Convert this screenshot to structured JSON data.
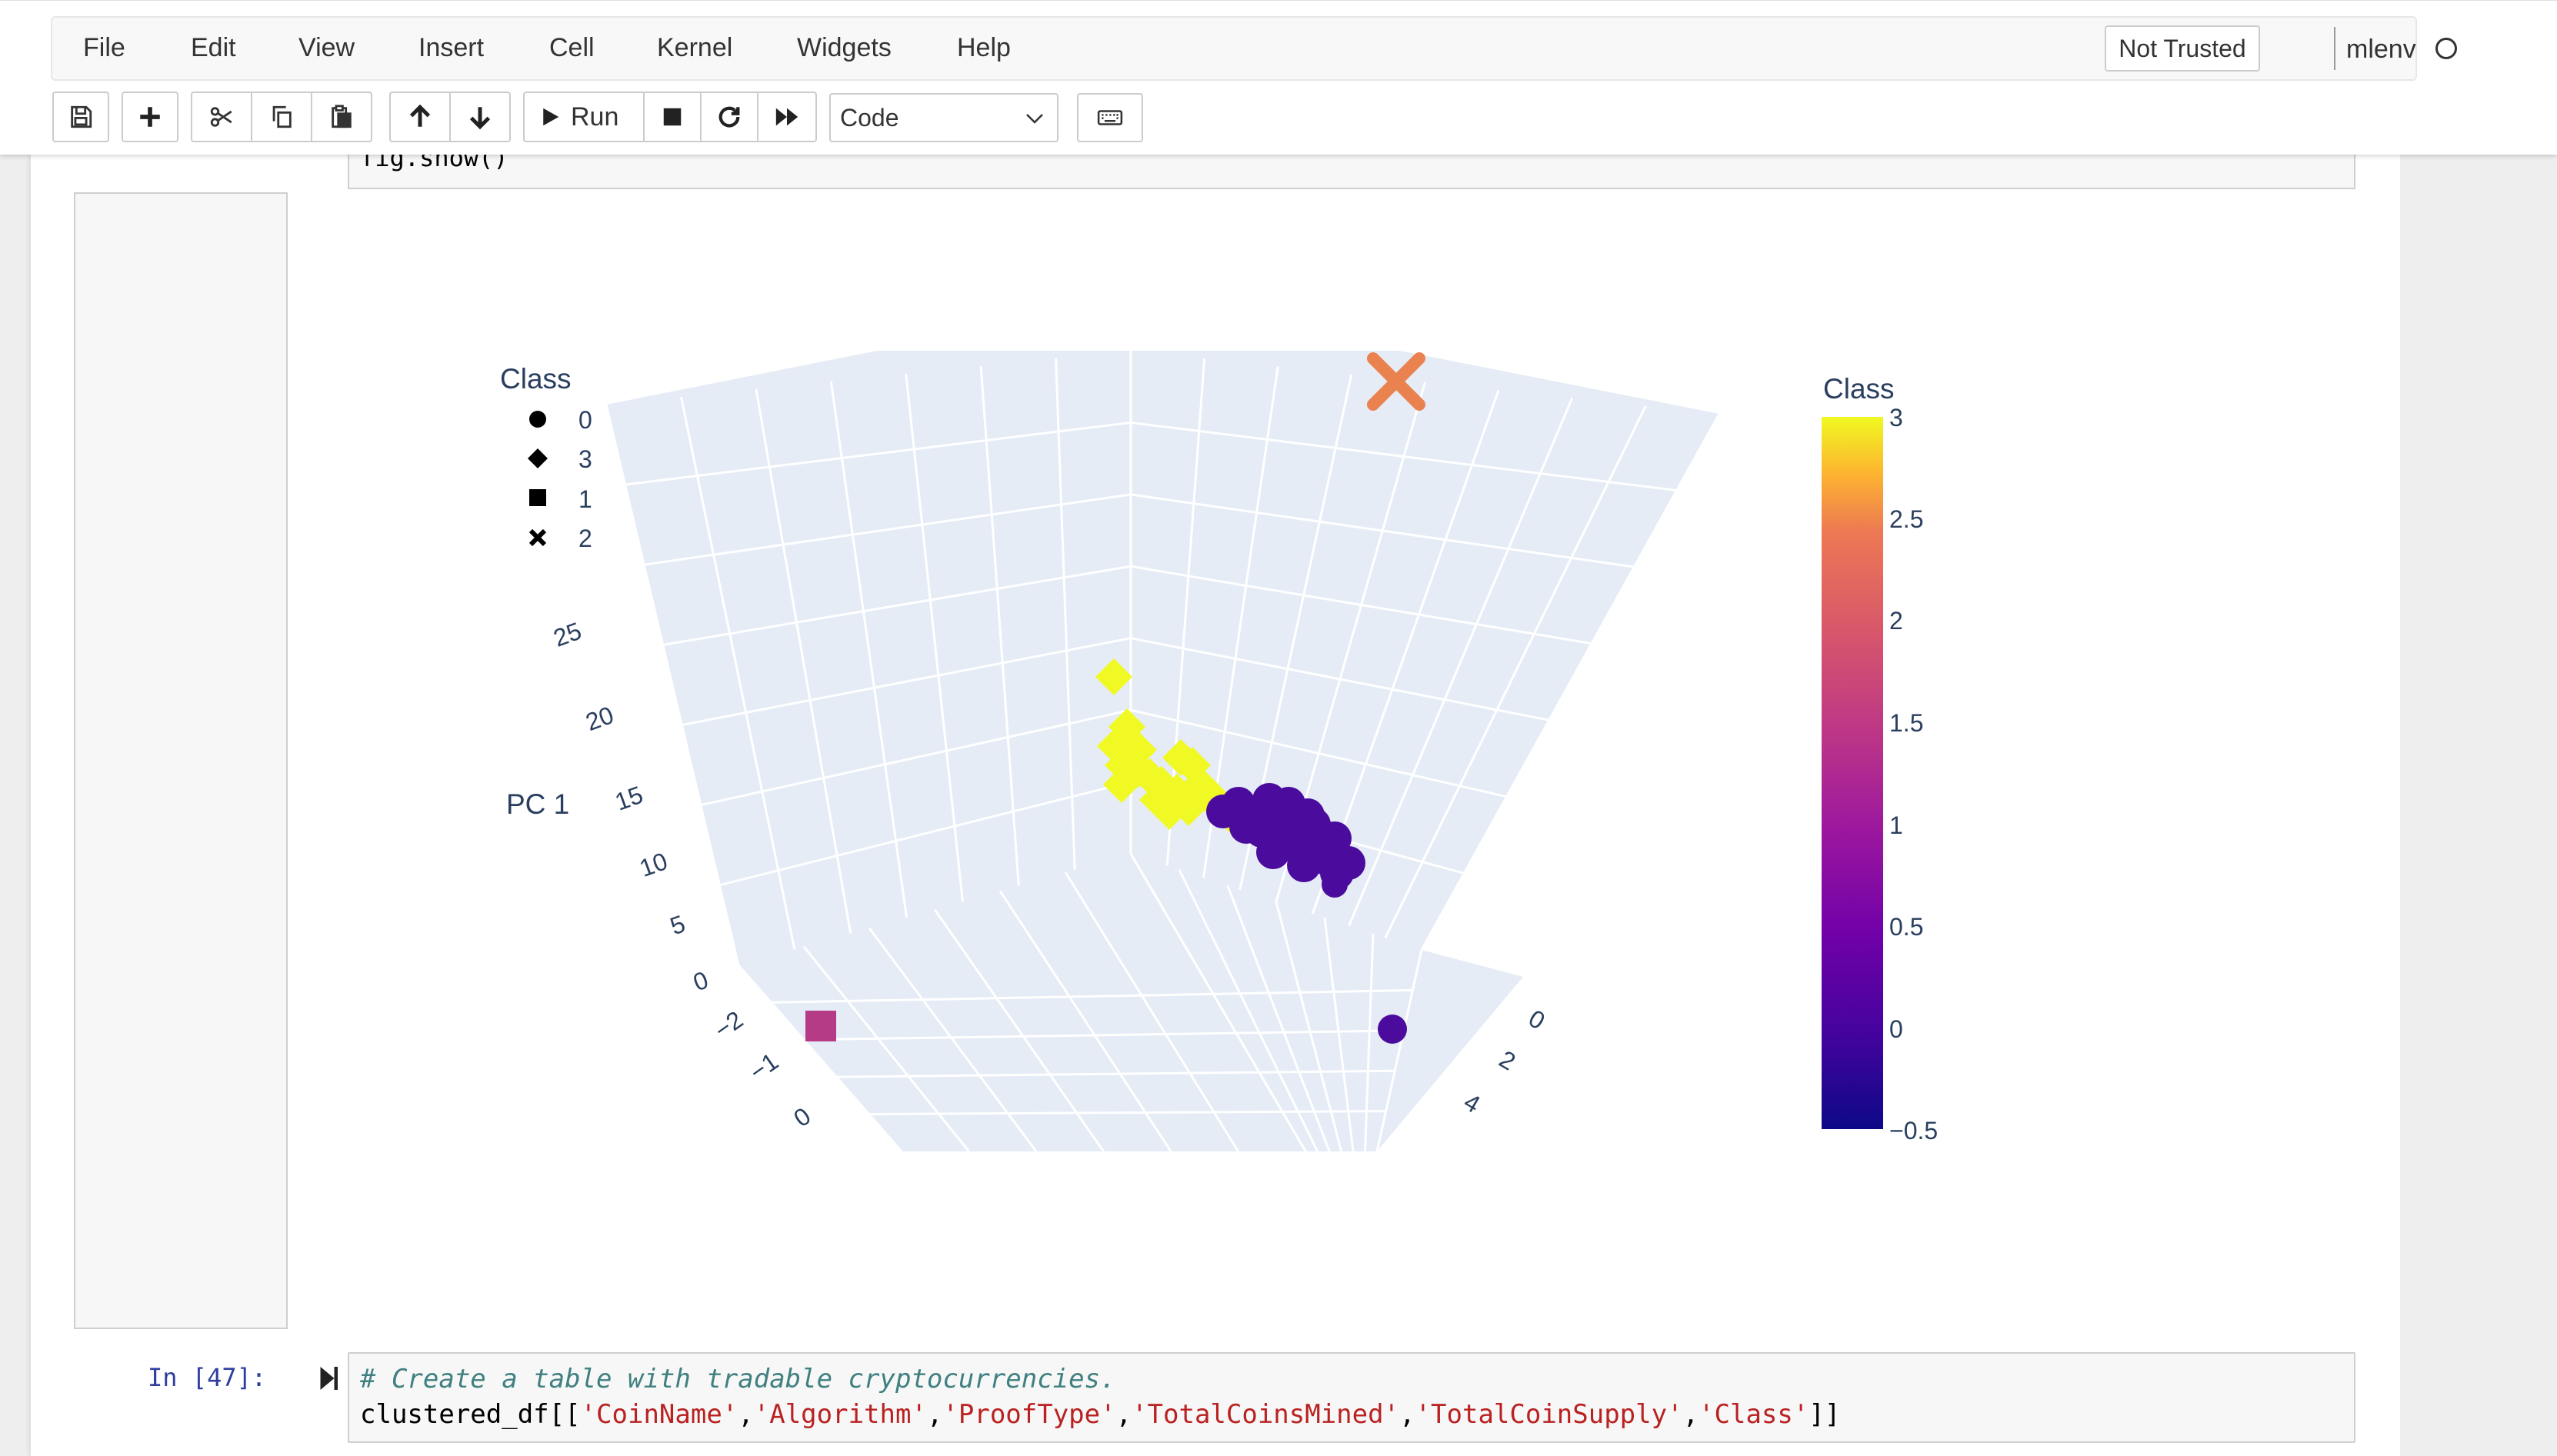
{
  "menubar": {
    "items": [
      "File",
      "Edit",
      "View",
      "Insert",
      "Cell",
      "Kernel",
      "Widgets",
      "Help"
    ],
    "trusted_label": "Not Trusted",
    "kernel_name": "mlenv"
  },
  "toolbar": {
    "run_label": "Run",
    "cell_type": "Code",
    "icons": [
      "save-icon",
      "plus-icon",
      "cut-icon",
      "copy-icon",
      "paste-icon",
      "arrow-up-icon",
      "arrow-down-icon",
      "run-icon",
      "stop-icon",
      "restart-icon",
      "fast-forward-icon",
      "keyboard-icon"
    ]
  },
  "previous_cell": {
    "code_tail": "fig.show()"
  },
  "plot": {
    "legend_title": "Class",
    "legend_items": [
      {
        "symbol": "circle",
        "label": "0"
      },
      {
        "symbol": "diamond",
        "label": "3"
      },
      {
        "symbol": "square",
        "label": "1"
      },
      {
        "symbol": "x",
        "label": "2"
      }
    ],
    "colorbar_title": "Class",
    "colorbar_ticks": [
      "3",
      "2.5",
      "2",
      "1.5",
      "1",
      "0.5",
      "0",
      "−0.5"
    ],
    "axis_title_z": "PC 1",
    "z_ticks": [
      "25",
      "20",
      "15",
      "10",
      "5",
      "0"
    ],
    "x_ticks": [
      "−2",
      "−1",
      "0"
    ],
    "y_ticks": [
      "0",
      "2",
      "4"
    ],
    "colors": {
      "class_0": "#4b0c9d",
      "class_1": "#b53b86",
      "class_2": "#e9824f",
      "class_3": "#f0f924",
      "pane": "#e5ecf6",
      "grid": "#ffffff",
      "text": "#2a3f5f"
    }
  },
  "next_cell": {
    "prompt": "In [47]:",
    "comment": "# Create a table with tradable cryptocurrencies.",
    "code_prefix": "clustered_df[[",
    "strings": [
      "'CoinName'",
      "'Algorithm'",
      "'ProofType'",
      "'TotalCoinsMined'",
      "'TotalCoinSupply'",
      "'Class'"
    ],
    "separator": ",",
    "code_suffix": "]]"
  }
}
